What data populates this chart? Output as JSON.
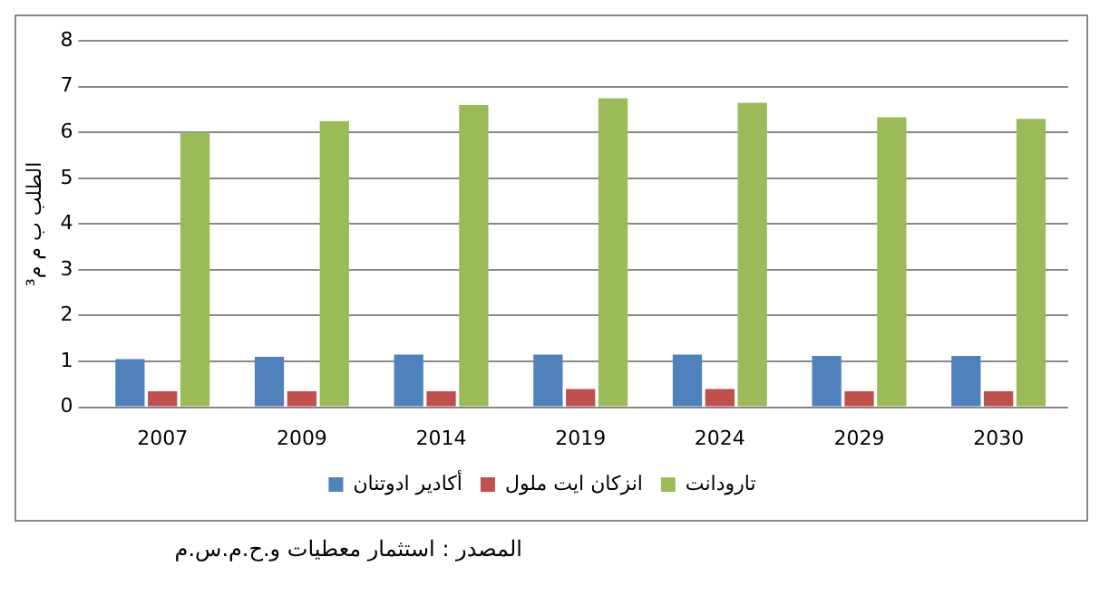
{
  "chart_data": {
    "type": "bar",
    "ylabel": "الطلب ب م م³",
    "categories": [
      "2007",
      "2009",
      "2014",
      "2019",
      "2024",
      "2029",
      "2030"
    ],
    "series": [
      {
        "name": "أكادير ادوتنان",
        "color": "#4f81bd",
        "values": [
          1.05,
          1.1,
          1.15,
          1.15,
          1.15,
          1.12,
          1.12
        ]
      },
      {
        "name": "انزكان ايت ملول",
        "color": "#c0504d",
        "values": [
          0.35,
          0.35,
          0.35,
          0.4,
          0.4,
          0.35,
          0.35
        ]
      },
      {
        "name": "تارودانت",
        "color": "#9bbb59",
        "values": [
          6.0,
          6.25,
          6.6,
          6.75,
          6.65,
          6.33,
          6.3
        ]
      }
    ],
    "ylim": [
      0,
      8
    ],
    "yticks": [
      0,
      1,
      2,
      3,
      4,
      5,
      6,
      7,
      8
    ],
    "grid": "y",
    "legend": "bottom",
    "annotations": [
      "المصدر : استثمار معطيات و.ح.م.س.م"
    ]
  }
}
